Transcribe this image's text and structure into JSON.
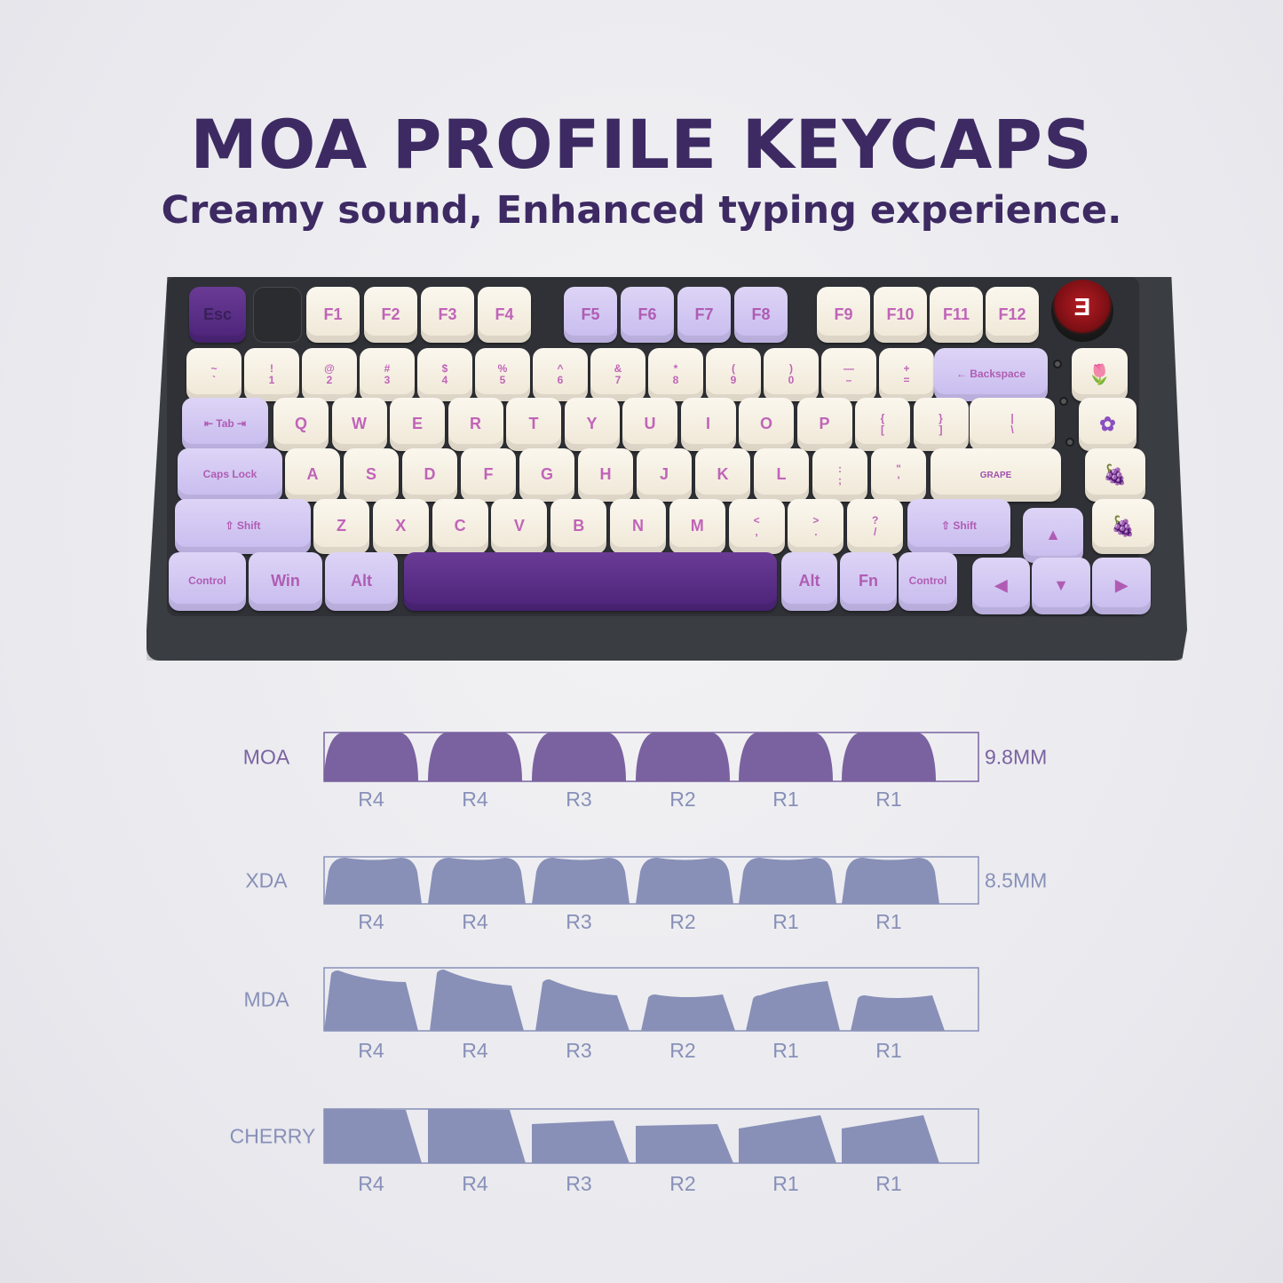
{
  "header": {
    "title": "MOA PROFILE KEYCAPS",
    "subtitle": "Creamy sound, Enhanced typing experience."
  },
  "keyboard": {
    "knob_logo": "Ǝ",
    "rows": [
      [
        {
          "t": "Esc",
          "c": "dark"
        },
        {
          "t": "",
          "c": "blank"
        },
        {
          "t": "F1",
          "c": "cream"
        },
        {
          "t": "F2",
          "c": "cream"
        },
        {
          "t": "F3",
          "c": "cream"
        },
        {
          "t": "F4",
          "c": "cream"
        },
        {
          "t": "F5",
          "c": "lav"
        },
        {
          "t": "F6",
          "c": "lav"
        },
        {
          "t": "F7",
          "c": "lav"
        },
        {
          "t": "F8",
          "c": "lav"
        },
        {
          "t": "F9",
          "c": "cream"
        },
        {
          "t": "F10",
          "c": "cream"
        },
        {
          "t": "F11",
          "c": "cream"
        },
        {
          "t": "F12",
          "c": "cream"
        }
      ],
      [
        {
          "t": "~",
          "b": "`",
          "c": "cream"
        },
        {
          "t": "!",
          "b": "1",
          "c": "cream"
        },
        {
          "t": "@",
          "b": "2",
          "c": "cream"
        },
        {
          "t": "#",
          "b": "3",
          "c": "cream"
        },
        {
          "t": "$",
          "b": "4",
          "c": "cream"
        },
        {
          "t": "%",
          "b": "5",
          "c": "cream"
        },
        {
          "t": "^",
          "b": "6",
          "c": "cream"
        },
        {
          "t": "&",
          "b": "7",
          "c": "cream"
        },
        {
          "t": "*",
          "b": "8",
          "c": "cream"
        },
        {
          "t": "(",
          "b": "9",
          "c": "cream"
        },
        {
          "t": ")",
          "b": "0",
          "c": "cream"
        },
        {
          "t": "—",
          "b": "–",
          "c": "cream"
        },
        {
          "t": "+",
          "b": "=",
          "c": "cream"
        },
        {
          "t": "← Backspace",
          "c": "lav"
        },
        {
          "t": "🌷",
          "c": "cream",
          "icon": "tulip"
        }
      ],
      [
        {
          "t": "⇤ Tab ⇥",
          "c": "lav"
        },
        {
          "t": "Q",
          "c": "cream"
        },
        {
          "t": "W",
          "c": "cream"
        },
        {
          "t": "E",
          "c": "cream"
        },
        {
          "t": "R",
          "c": "cream"
        },
        {
          "t": "T",
          "c": "cream"
        },
        {
          "t": "Y",
          "c": "cream"
        },
        {
          "t": "U",
          "c": "cream"
        },
        {
          "t": "I",
          "c": "cream"
        },
        {
          "t": "O",
          "c": "cream"
        },
        {
          "t": "P",
          "c": "cream"
        },
        {
          "t": "{",
          "b": "[",
          "c": "cream"
        },
        {
          "t": "}",
          "b": "]",
          "c": "cream"
        },
        {
          "t": "|",
          "b": "\\",
          "c": "cream"
        },
        {
          "t": "✿",
          "c": "cream",
          "icon": "lavender"
        }
      ],
      [
        {
          "t": "Caps Lock",
          "c": "lav"
        },
        {
          "t": "A",
          "c": "cream"
        },
        {
          "t": "S",
          "c": "cream"
        },
        {
          "t": "D",
          "c": "cream"
        },
        {
          "t": "F",
          "c": "cream"
        },
        {
          "t": "G",
          "c": "cream"
        },
        {
          "t": "H",
          "c": "cream"
        },
        {
          "t": "J",
          "c": "cream"
        },
        {
          "t": "K",
          "c": "cream"
        },
        {
          "t": "L",
          "c": "cream"
        },
        {
          "t": ":",
          "b": ";",
          "c": "cream"
        },
        {
          "t": "\"",
          "b": "'",
          "c": "cream"
        },
        {
          "t": "GRAPE",
          "c": "cream",
          "icon": "grape-splash"
        },
        {
          "t": "🍇",
          "c": "cream",
          "icon": "grapes"
        }
      ],
      [
        {
          "t": "⇧ Shift",
          "c": "lav"
        },
        {
          "t": "Z",
          "c": "cream"
        },
        {
          "t": "X",
          "c": "cream"
        },
        {
          "t": "C",
          "c": "cream"
        },
        {
          "t": "V",
          "c": "cream"
        },
        {
          "t": "B",
          "c": "cream"
        },
        {
          "t": "N",
          "c": "cream"
        },
        {
          "t": "M",
          "c": "cream"
        },
        {
          "t": "<",
          "b": ",",
          "c": "cream"
        },
        {
          "t": ">",
          "b": ".",
          "c": "cream"
        },
        {
          "t": "?",
          "b": "/",
          "c": "cream"
        },
        {
          "t": "⇧ Shift",
          "c": "lav"
        },
        {
          "t": "▲",
          "c": "lav"
        },
        {
          "t": "🍇",
          "c": "cream",
          "icon": "grapes"
        }
      ],
      [
        {
          "t": "Control",
          "c": "lav"
        },
        {
          "t": "Win",
          "c": "lav"
        },
        {
          "t": "Alt",
          "c": "lav"
        },
        {
          "t": "",
          "c": "dark"
        },
        {
          "t": "Alt",
          "c": "lav"
        },
        {
          "t": "Fn",
          "c": "lav"
        },
        {
          "t": "Control",
          "c": "lav"
        },
        {
          "t": "◀",
          "c": "lav"
        },
        {
          "t": "▼",
          "c": "lav"
        },
        {
          "t": "▶",
          "c": "lav"
        }
      ]
    ]
  },
  "profiles": {
    "row_labels": [
      "R4",
      "R4",
      "R3",
      "R2",
      "R1",
      "R1"
    ],
    "items": [
      {
        "name": "MOA",
        "height": "9.8MM",
        "color": "#7a62a0",
        "label_color": "#7a62a0"
      },
      {
        "name": "XDA",
        "height": "8.5MM",
        "color": "#8890b8",
        "label_color": "#8890b8"
      },
      {
        "name": "MDA",
        "height": "",
        "color": "#8890b8",
        "label_color": "#8890b8"
      },
      {
        "name": "CHERRY",
        "height": "",
        "color": "#8890b8",
        "label_color": "#8890b8"
      }
    ]
  },
  "colors": {
    "title": "#3d2a63",
    "legend_text": "#8890b8",
    "cream": "#f4eee0",
    "lavender": "#d3c8f2",
    "dark_purple": "#5a2d87"
  }
}
